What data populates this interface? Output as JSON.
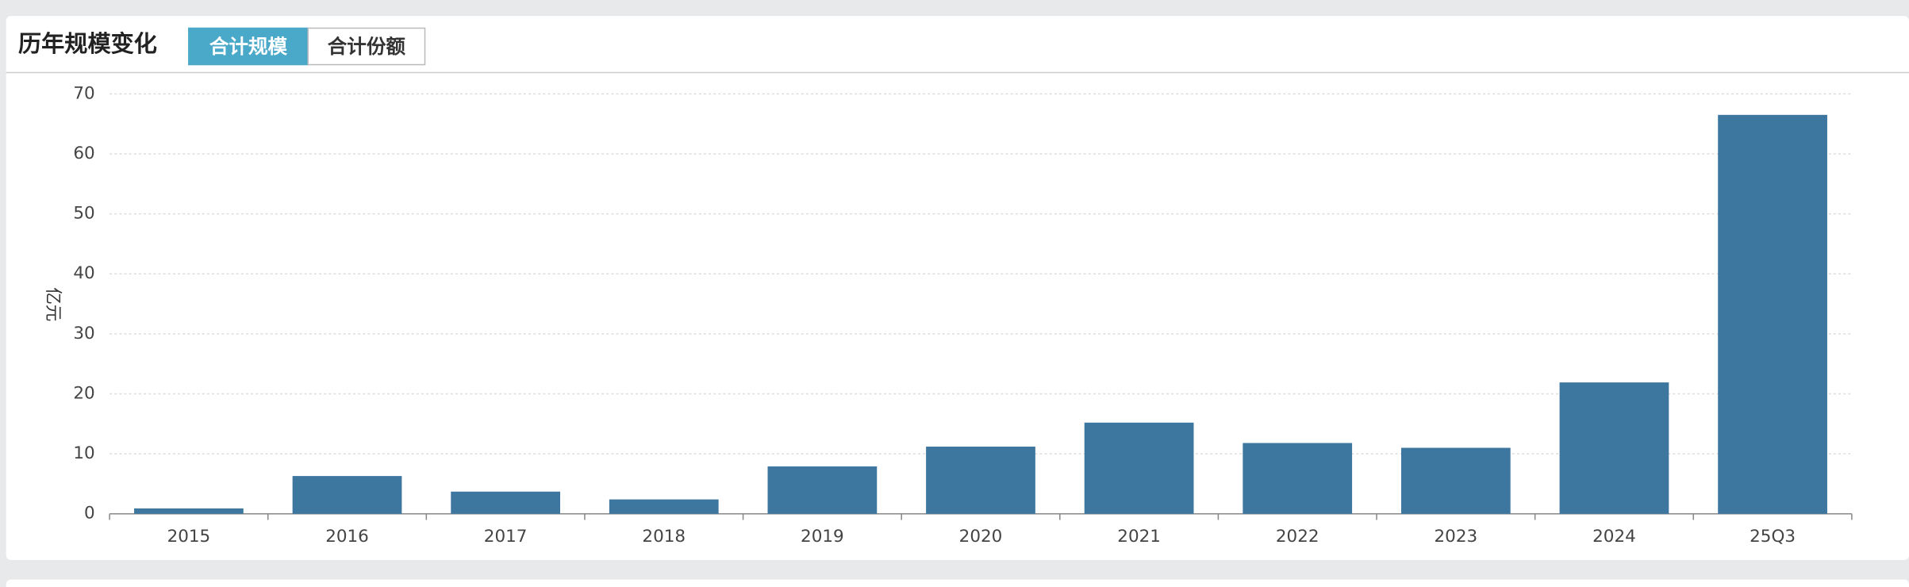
{
  "header": {
    "title": "历年规模变化",
    "tabs": [
      "合计规模",
      "合计份额"
    ]
  },
  "chart_data": {
    "type": "bar",
    "y_label": "亿元",
    "categories": [
      "2015",
      "2016",
      "2017",
      "2018",
      "2019",
      "2020",
      "2021",
      "2022",
      "2023",
      "2024",
      "25Q3"
    ],
    "values": [
      0.9,
      6.3,
      3.7,
      2.4,
      7.9,
      11.2,
      15.2,
      11.8,
      11.0,
      21.9,
      66.5
    ],
    "color": "#3d769f",
    "ylim": [
      0,
      70
    ],
    "yticks": [
      0,
      10,
      20,
      30,
      40,
      50,
      60,
      70
    ],
    "grid": true
  }
}
